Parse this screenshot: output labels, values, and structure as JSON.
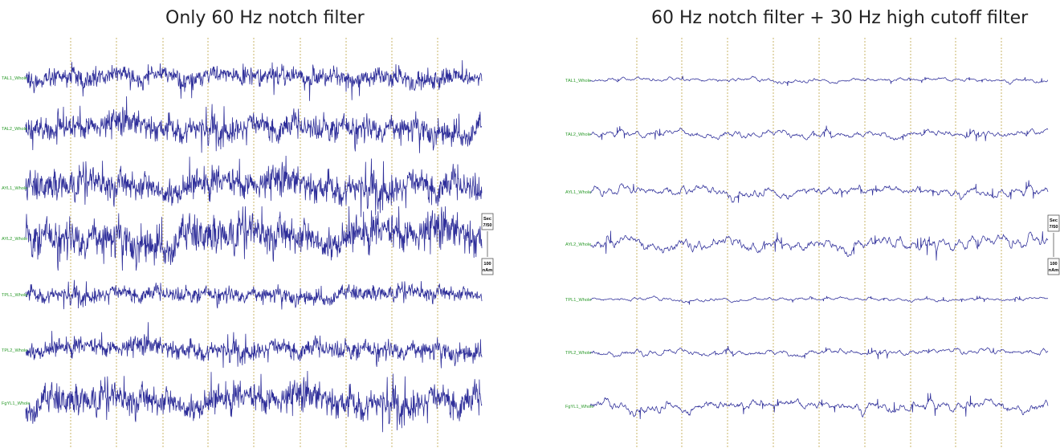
{
  "panels": [
    {
      "title": "Only 60 Hz notch filter",
      "filter": "notch",
      "channels": [
        "TAL1_Whole",
        "TAL2_Whole",
        "AYL1_Whole",
        "AYL2_Whole",
        "TPL1_Whole",
        "TPL2_Whole",
        "FgYL1_Whole"
      ],
      "scale": {
        "time": "Sec",
        "time_value": "7/50",
        "amp_value": "100",
        "amp_unit": "nAm"
      }
    },
    {
      "title": "60 Hz notch filter + 30 Hz high cutoff filter",
      "filter": "notch+lowpass",
      "channels": [
        "TAL1_Whole",
        "TAL2_Whole",
        "AYL1_Whole",
        "AYL2_Whole",
        "TPL1_Whole",
        "TPL2_Whole",
        "FgYL1_Whole"
      ],
      "scale": {
        "time": "Sec",
        "time_value": "7/50",
        "amp_value": "100",
        "amp_unit": "nAm"
      }
    }
  ],
  "colors": {
    "trace": "#2f2f9a",
    "label": "#2a9a2a",
    "gridline": "#c8b46a"
  }
}
